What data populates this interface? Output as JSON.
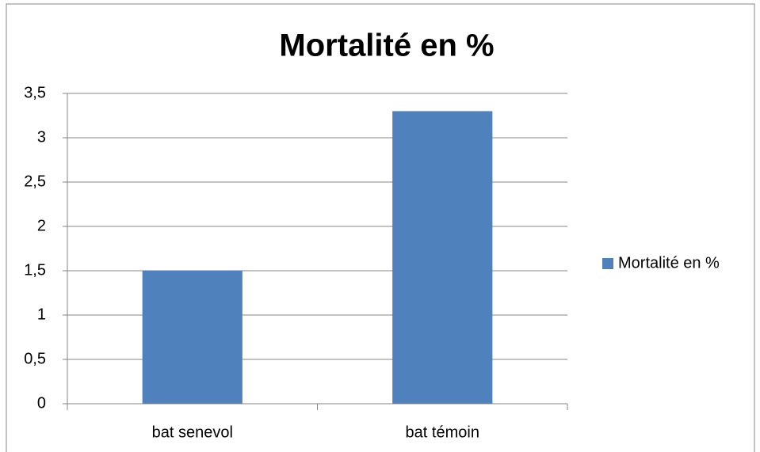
{
  "chart_data": {
    "type": "bar",
    "title": "Mortalité en %",
    "categories": [
      "bat senevol",
      "bat témoin"
    ],
    "series": [
      {
        "name": "Mortalité en %",
        "color": "#4f81bd",
        "values": [
          1.5,
          3.3
        ]
      }
    ],
    "ylim": [
      0,
      3.5
    ],
    "yticks": [
      0,
      {
        "value": 0.5,
        "label": "0,5"
      },
      1,
      {
        "value": 1.5,
        "label": "1,5"
      },
      2,
      {
        "value": 2.5,
        "label": "2,5"
      },
      3,
      {
        "value": 3.5,
        "label": "3,5"
      }
    ],
    "grid": true,
    "legend": "right"
  }
}
